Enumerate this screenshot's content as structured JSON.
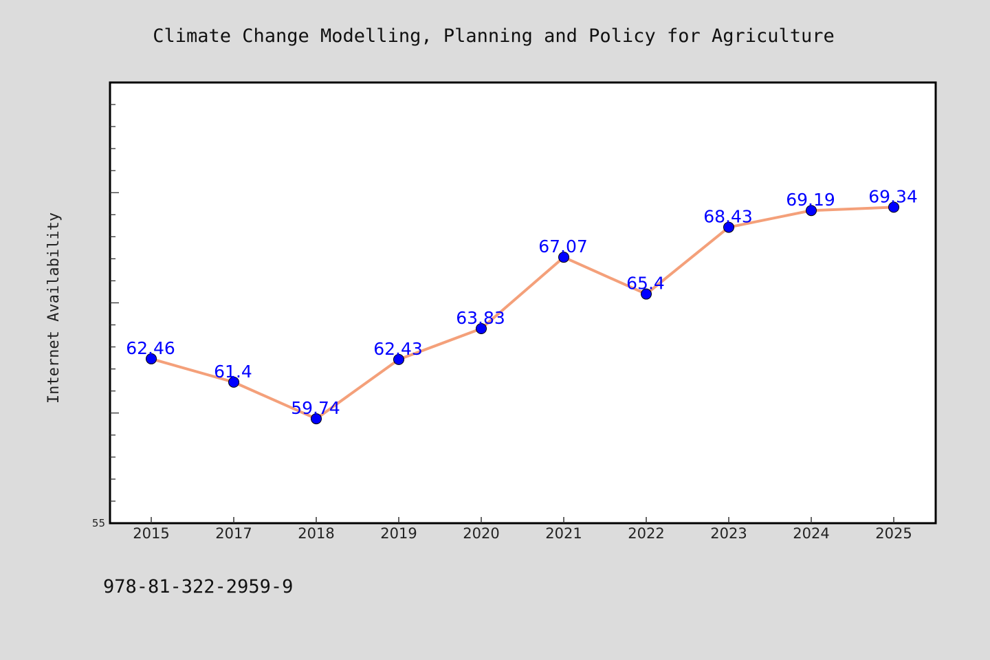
{
  "chart_data": {
    "type": "line",
    "title": "Climate Change Modelling, Planning and Policy for Agriculture",
    "xlabel": "",
    "ylabel": "Internet Availability",
    "categories": [
      "2015",
      "2017",
      "2018",
      "2019",
      "2020",
      "2021",
      "2022",
      "2023",
      "2024",
      "2025"
    ],
    "series": [
      {
        "values": [
          62.46,
          61.4,
          59.74,
          62.43,
          63.83,
          67.07,
          65.4,
          68.43,
          69.19,
          69.34
        ],
        "labels": [
          "62.46",
          "61.4",
          "59.74",
          "62.43",
          "63.83",
          "67.07",
          "65.4",
          "68.43",
          "69.19",
          "69.34"
        ]
      }
    ],
    "ylim": [
      55,
      75
    ],
    "ytick_label_min": "55",
    "grid": false,
    "legend": "none",
    "colors": {
      "line": "#f4a07a",
      "marker": "#0000ff",
      "data_label": "#0000ff",
      "plot_bg": "#ffffff",
      "page_bg": "#dcdcdc"
    }
  },
  "footer": {
    "isbn": "978-81-322-2959-9"
  }
}
